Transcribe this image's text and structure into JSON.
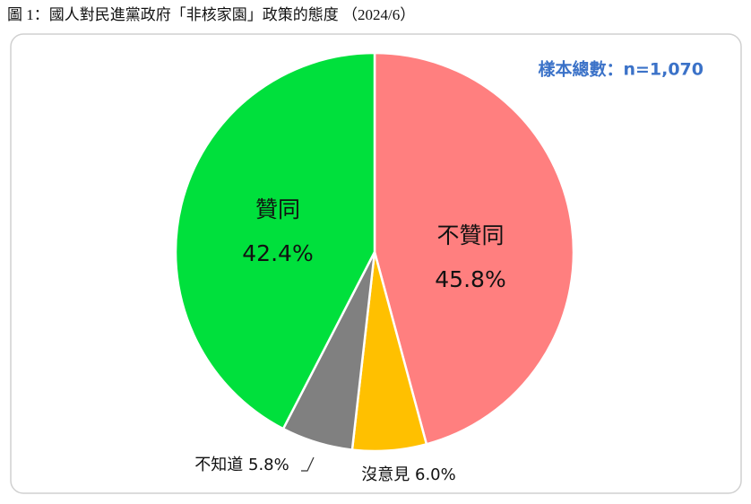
{
  "chart_data": {
    "type": "pie",
    "title": "圖 1：國人對民進黨政府「非核家園」政策的態度 （2024/6）",
    "note": "樣本總數：n=1,070",
    "categories": [
      "不贊同",
      "沒意見",
      "不知道",
      "贊同"
    ],
    "values": [
      45.8,
      6.0,
      5.8,
      42.4
    ],
    "value_labels": [
      "45.8%",
      "6.0%",
      "5.8%",
      "42.4%"
    ],
    "colors": [
      "#ff7f7f",
      "#ffc000",
      "#808080",
      "#00e03c"
    ]
  }
}
